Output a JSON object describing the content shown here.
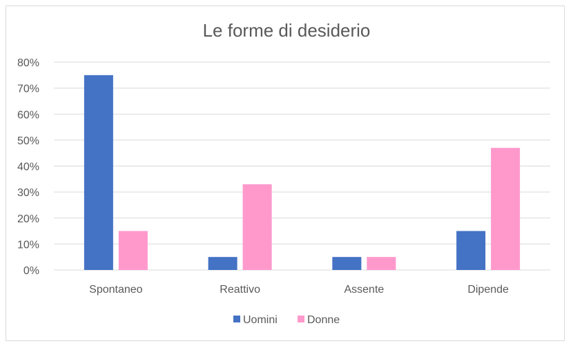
{
  "chart_data": {
    "type": "bar",
    "title": "Le forme di desiderio",
    "xlabel": "",
    "ylabel": "",
    "categories": [
      "Spontaneo",
      "Reattivo",
      "Assente",
      "Dipende"
    ],
    "series": [
      {
        "name": "Uomini",
        "color": "#4472C4",
        "values": [
          75,
          5,
          5,
          15
        ]
      },
      {
        "name": "Donne",
        "color": "#FF99CC",
        "values": [
          15,
          33,
          5,
          47
        ]
      }
    ],
    "ylim": [
      0,
      80
    ],
    "yticks": [
      0,
      10,
      20,
      30,
      40,
      50,
      60,
      70,
      80
    ],
    "ytick_labels": [
      "0%",
      "10%",
      "20%",
      "30%",
      "40%",
      "50%",
      "60%",
      "70%",
      "80%"
    ],
    "grid": true,
    "legend_position": "bottom"
  }
}
